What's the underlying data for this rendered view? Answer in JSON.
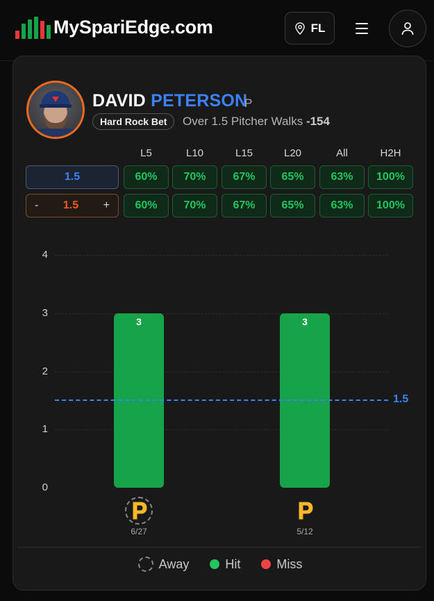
{
  "header": {
    "brand": "MySpariEdge.com",
    "logo_colors": [
      "#e53935",
      "#16a34a",
      "#16a34a",
      "#16a34a",
      "#e53935",
      "#16a34a"
    ],
    "state": "FL",
    "icons": {
      "location": "map-pin-icon",
      "menu": "hamburger-icon",
      "user": "user-icon"
    }
  },
  "player": {
    "first_name": "DAVID",
    "last_name": "PETERSON",
    "position": "P",
    "sportsbook": "Hard Rock Bet",
    "prop_text": "Over 1.5 Pitcher Walks",
    "odds": "-154"
  },
  "splits": {
    "headers": [
      "L5",
      "L10",
      "L15",
      "L20",
      "All",
      "H2H"
    ],
    "line_value": "1.5",
    "adjust": {
      "minus": "-",
      "value": "1.5",
      "plus": "+"
    },
    "row1": [
      "60%",
      "70%",
      "67%",
      "65%",
      "63%",
      "100%"
    ],
    "row2": [
      "60%",
      "70%",
      "67%",
      "65%",
      "63%",
      "100%"
    ]
  },
  "chart_data": {
    "type": "bar",
    "categories": [
      "6/27",
      "5/12"
    ],
    "values": [
      3,
      3
    ],
    "value_labels": [
      "3",
      "3"
    ],
    "location": [
      "away",
      "home"
    ],
    "result": [
      "hit",
      "hit"
    ],
    "ylim": [
      0,
      4
    ],
    "yticks": [
      "4",
      "3",
      "2",
      "1",
      "0"
    ],
    "line": 1.5,
    "line_label": "1.5",
    "colors": {
      "hit": "#16a34a",
      "miss": "#ef4444",
      "line": "#3b82f6"
    }
  },
  "legend": {
    "away": "Away",
    "hit": "Hit",
    "miss": "Miss"
  }
}
